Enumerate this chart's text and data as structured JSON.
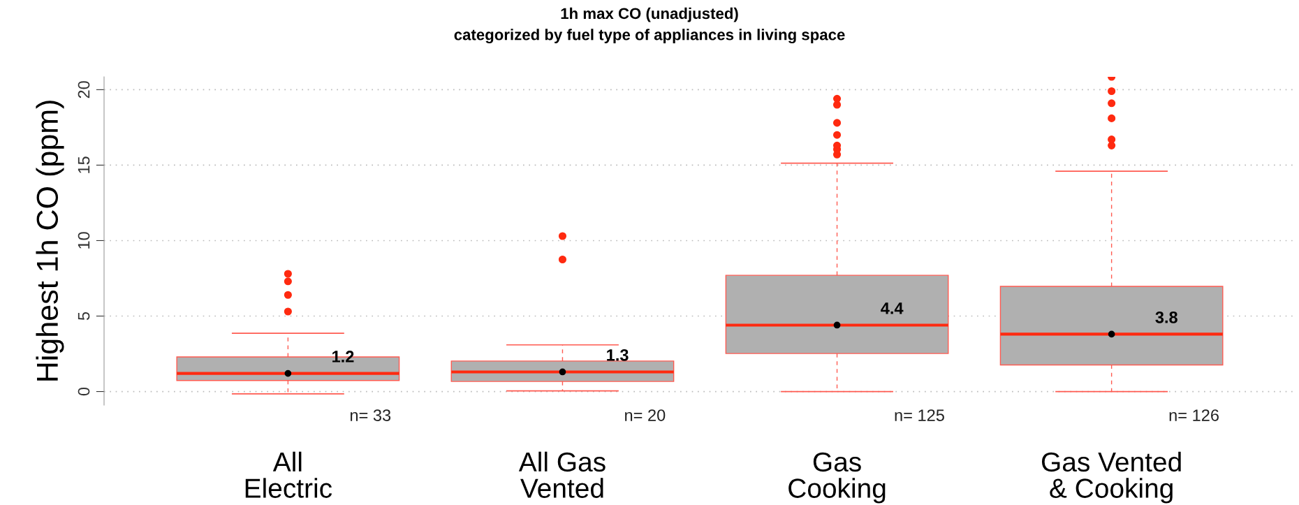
{
  "chart_data": {
    "type": "box",
    "title": "1h max CO (unadjusted)\ncategorized by fuel type of appliances in living space",
    "ylabel": "Highest 1h CO (ppm)",
    "categories": [
      "All\nElectric",
      "All Gas\nVented",
      "Gas\nCooking",
      "Gas Vented\n& Cooking"
    ],
    "series": [
      {
        "color": "#b0b0b0",
        "boxes": [
          {
            "low": -0.15,
            "q1": 0.73,
            "median": 1.2,
            "q3": 2.29,
            "high": 3.86,
            "mean": 1.2,
            "outliers": [
              5.3,
              6.4,
              7.3,
              7.8
            ]
          },
          {
            "low": 0.04,
            "q1": 0.67,
            "median": 1.3,
            "q3": 2.02,
            "high": 3.09,
            "mean": 1.3,
            "outliers": [
              8.75,
              10.3
            ]
          },
          {
            "low": 0,
            "q1": 2.52,
            "median": 4.4,
            "q3": 7.7,
            "high": 15.13,
            "mean": 4.4,
            "outliers": [
              15.7,
              16.05,
              16.3,
              17.0,
              17.8,
              19.0,
              19.4
            ]
          },
          {
            "low": 0,
            "q1": 1.76,
            "median": 3.8,
            "q3": 6.97,
            "high": 14.6,
            "mean": 3.8,
            "outliers": [
              16.3,
              16.7,
              18.1,
              19.1,
              19.9,
              20.85
            ]
          }
        ]
      }
    ],
    "ylim": [
      -0.9,
      20.85
    ],
    "yticks": [
      0,
      5,
      10,
      15,
      20
    ],
    "grid": "y",
    "annotations": [
      {
        "text": "1.2",
        "x": "All\nElectric",
        "y": 1.2
      },
      {
        "text": "1.3",
        "x": "All Gas\nVented",
        "y": 1.3
      },
      {
        "text": "4.4",
        "x": "Gas\nCooking",
        "y": 4.4
      },
      {
        "text": "3.8",
        "x": "Gas Vented\n& Cooking",
        "y": 3.8
      },
      "n= 33",
      "n= 20",
      "n= 125",
      "n= 126"
    ]
  }
}
